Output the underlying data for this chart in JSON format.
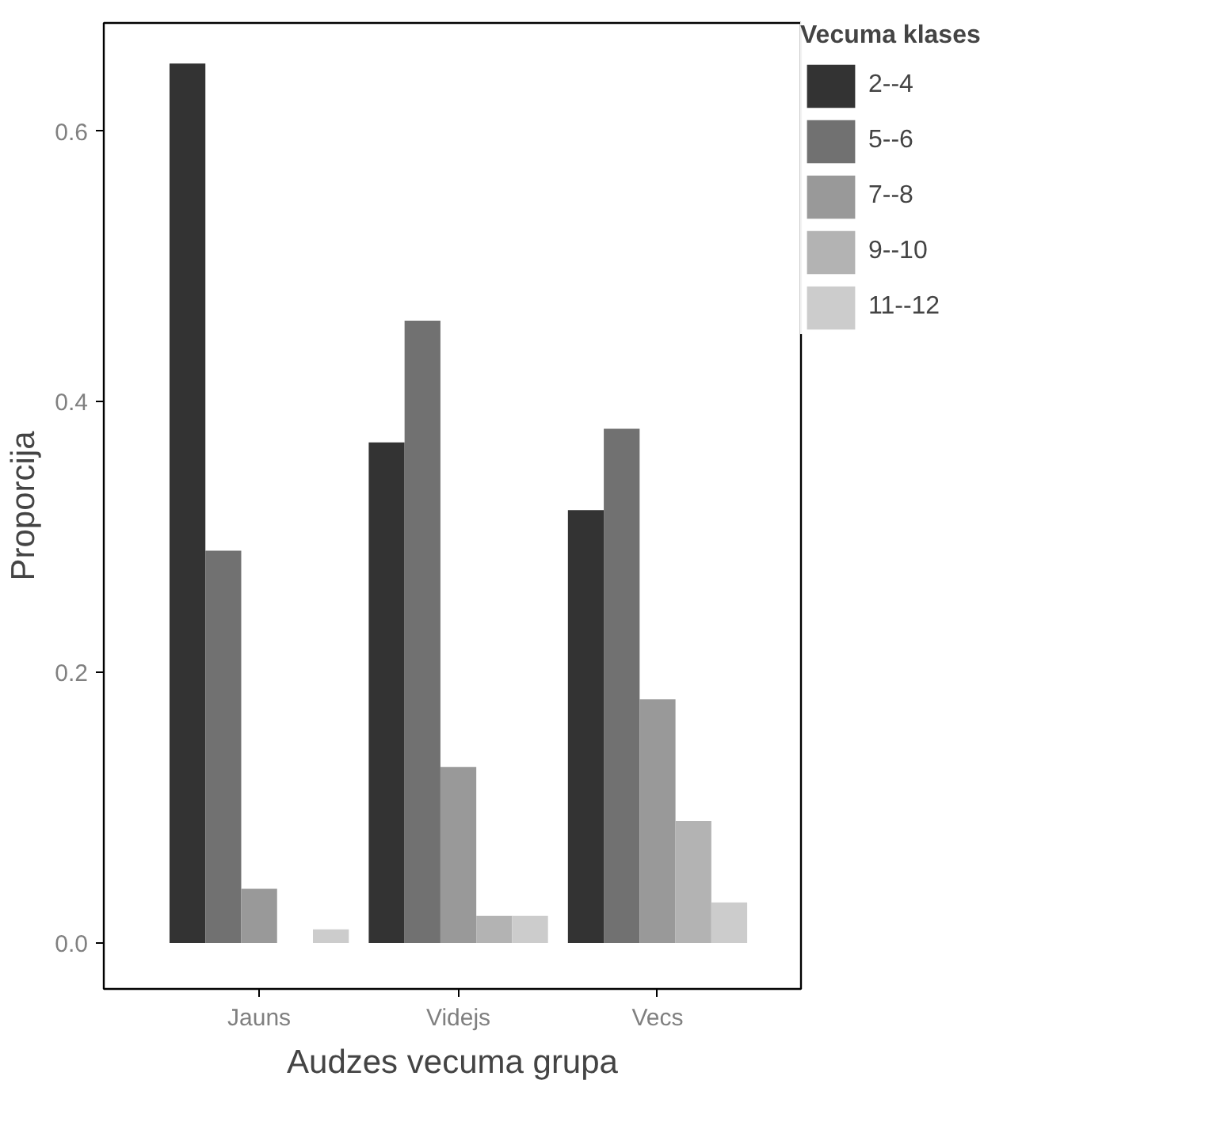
{
  "chart_data": {
    "type": "bar",
    "xlabel": "Audzes vecuma grupa",
    "ylabel": "Proporcija",
    "legend_title": "Vecuma klases",
    "legend": "right",
    "grid": false,
    "categories": [
      "Jauns",
      "Videjs",
      "Vecs"
    ],
    "ylim": [
      -0.034,
      0.68
    ],
    "yticks": [
      {
        "value": 0,
        "label": "0.0"
      },
      0.2,
      0.4,
      0.6
    ],
    "series": [
      {
        "name": "2--4",
        "color": "#333333",
        "values": [
          0.65,
          0.37,
          0.32
        ]
      },
      {
        "name": "5--6",
        "color": "#717171",
        "values": [
          0.29,
          0.46,
          0.38
        ]
      },
      {
        "name": "7--8",
        "color": "#999999",
        "values": [
          0.04,
          0.13,
          0.18
        ]
      },
      {
        "name": "9--10",
        "color": "#b3b3b3",
        "values": [
          null,
          0.02,
          0.09
        ]
      },
      {
        "name": "11--12",
        "color": "#cccccc",
        "values": [
          0.01,
          0.02,
          0.03
        ]
      }
    ]
  }
}
